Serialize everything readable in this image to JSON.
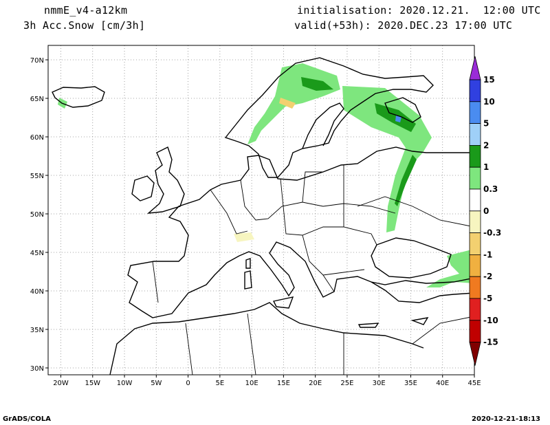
{
  "header": {
    "model": "nmmE_v4-a12km",
    "field": "3h Acc.Snow [cm/3h]",
    "init": "initialisation: 2020.12.21.  12:00 UTC",
    "valid": "valid(+53h): 2020.DEC.23 17:00 UTC"
  },
  "footer": {
    "credit": "GrADS/COLA",
    "timestamp": "2020-12-21-18:13"
  },
  "map": {
    "lon_ticks": [
      "20W",
      "15W",
      "10W",
      "5W",
      "0",
      "5E",
      "10E",
      "15E",
      "20E",
      "25E",
      "30E",
      "35E",
      "40E",
      "45E"
    ],
    "lat_ticks": [
      "70N",
      "65N",
      "60N",
      "55N",
      "50N",
      "45N",
      "40N",
      "35N",
      "30N"
    ]
  },
  "colorbar": {
    "labels": [
      "15",
      "10",
      "5",
      "2",
      "1",
      "0.3",
      "0",
      "-0.3",
      "-1",
      "-2",
      "-5",
      "-10",
      "-15"
    ],
    "colors": [
      "#9a2bd8",
      "#3040e0",
      "#4a8cf0",
      "#9fd0f8",
      "#1a9a1a",
      "#7ee67e",
      "#ffffff",
      "#f7f5c0",
      "#f3d070",
      "#f0b040",
      "#f07a20",
      "#e02020",
      "#c00000",
      "#800000"
    ]
  }
}
